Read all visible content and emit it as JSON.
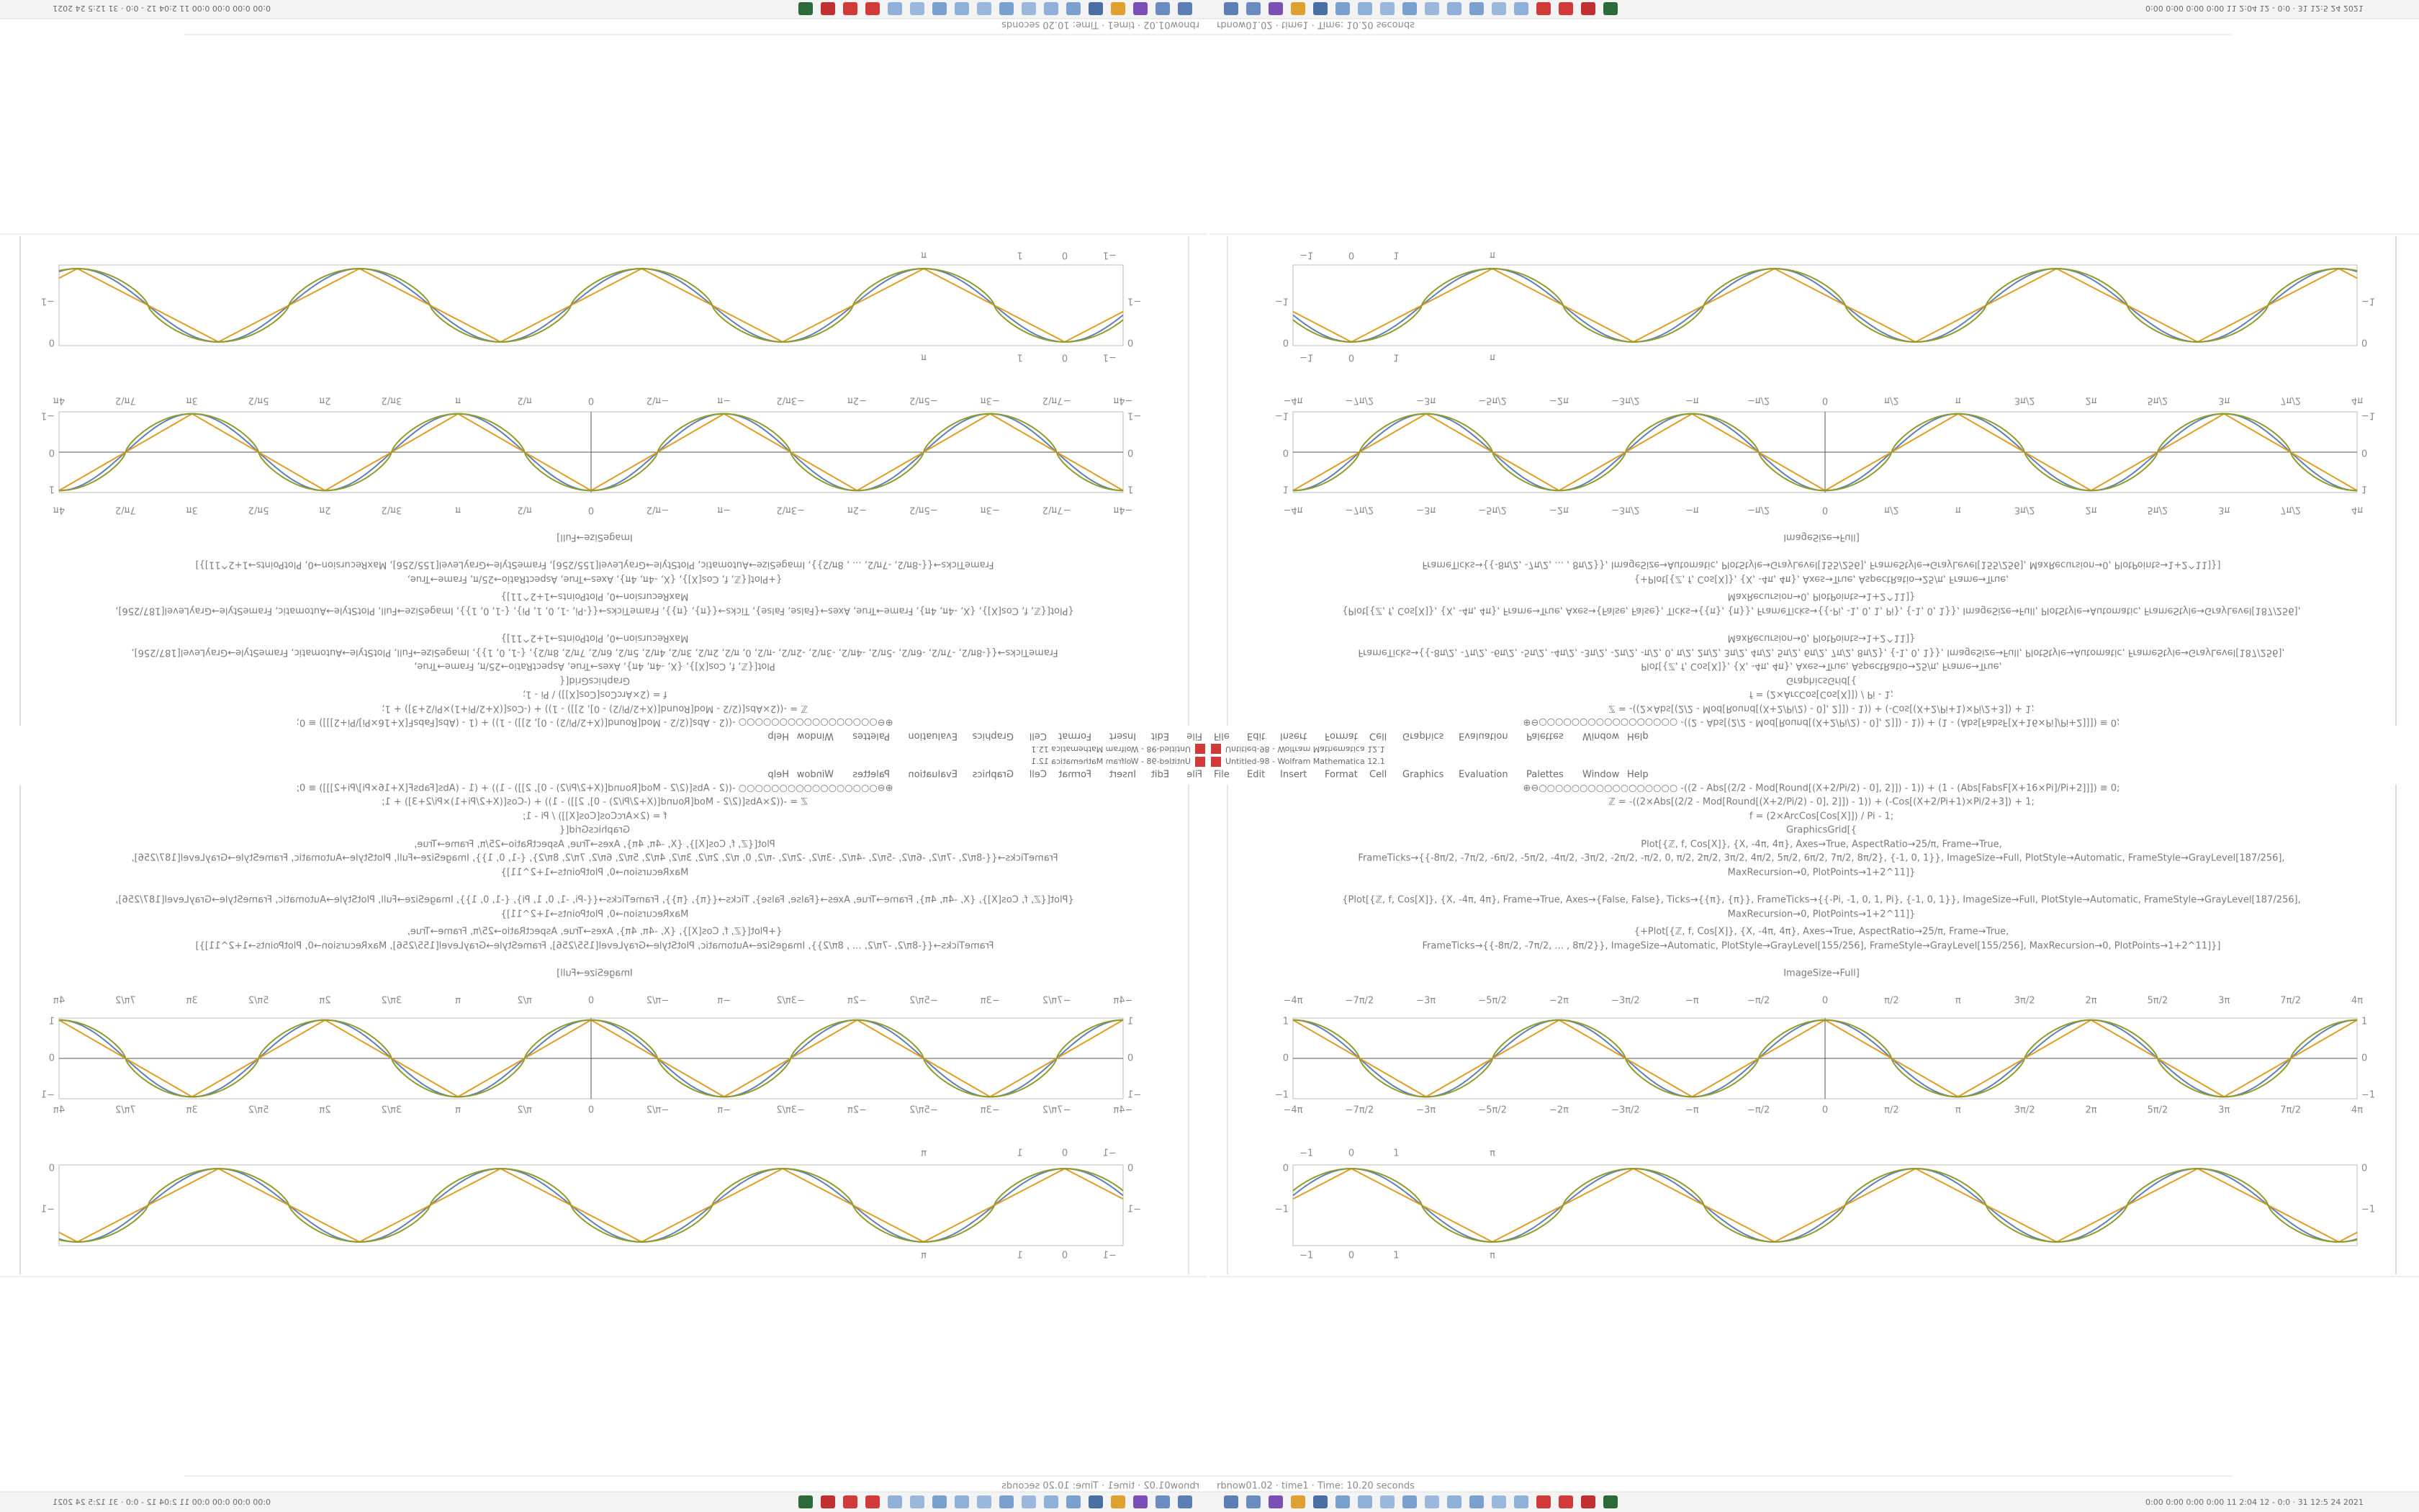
{
  "window": {
    "title": "Untitled-98 - Wolfram Mathematica 12.1",
    "status": "rbnow01.02 · time1 · Time: 10.20 seconds",
    "clock": "0:00 0:00 0:00 0:00 11 2:04 12 - 0:0 · 31 12:5 24 2021"
  },
  "menu": [
    "File",
    "Edit",
    "Insert",
    "Format",
    "Cell",
    "Graphics",
    "Evaluation",
    "Palettes",
    "Window",
    "Help"
  ],
  "code": [
    "⊕⊖○○○○○○○○○○○○○○○○○   -((2 - Abs[(2/2 - Mod[Round[(X+2/Pi/2) - 0], 2]]) - 1)) + (1 - (Abs[FabsF[X+16×Pi]/Pi+2]]]) ≡ 0;",
    "ℤ = -((2×Abs[(2/2 - Mod[Round[(X+2/Pi/2) - 0], 2]]) - 1)) + (-Cos[(X+2/Pi+1)×Pi/2+3]) + 1;",
    "f = (2×ArcCos[Cos[X]]) / Pi - 1;",
    "GraphicsGrid[{",
    "Plot[{ℤ, f, Cos[X]}, {X, -4π, 4π}, Axes→True, AspectRatio→25/π, Frame→True,",
    "FrameTicks→{{-8π/2, -7π/2, -6π/2, -5π/2, -4π/2, -3π/2, -2π/2, -π/2, 0, π/2, 2π/2, 3π/2, 4π/2, 5π/2, 6π/2, 7π/2, 8π/2}, {-1, 0, 1}}, ImageSize→Full, PlotStyle→Automatic, FrameStyle→GrayLevel[187/256],",
    "MaxRecursion→0, PlotPoints→1+2^11]}",
    "{Plot[{ℤ, f, Cos[X]}, {X, -4π, 4π}, Frame→True, Axes→{False, False}, Ticks→{{π}, {π}}, FrameTicks→{{-Pi, -1, 0, 1, Pi}, {-1, 0, 1}}, ImageSize→Full, PlotStyle→Automatic, FrameStyle→GrayLevel[187/256],",
    "MaxRecursion→0, PlotPoints→1+2^11]}",
    "{+Plot[{ℤ, f, Cos[X]}, {X, -4π, 4π}, Axes→True, AspectRatio→25/π, Frame→True,",
    "FrameTicks→{{-8π/2, -7π/2, ... , 8π/2}}, ImageSize→Automatic, PlotStyle→GrayLevel[155/256], FrameStyle→GrayLevel[155/256], MaxRecursion→0, PlotPoints→1+2^11]}]",
    "ImageSize→Full]"
  ],
  "plot_top": {
    "x_tick_labels": [
      "−4π",
      "−7π/2",
      "−3π",
      "−5π/2",
      "−2π",
      "−3π/2",
      "−π",
      "−π/2",
      "0",
      "π/2",
      "π",
      "3π/2",
      "2π",
      "5π/2",
      "3π",
      "7π/2",
      "4π"
    ],
    "y_tick_labels": [
      "1",
      "0",
      "−1"
    ]
  },
  "plot_bottom": {
    "x_tick_labels": [
      "−1",
      "0",
      "1",
      "π"
    ],
    "y_tick_labels": [
      "0",
      "−1"
    ]
  }
}
